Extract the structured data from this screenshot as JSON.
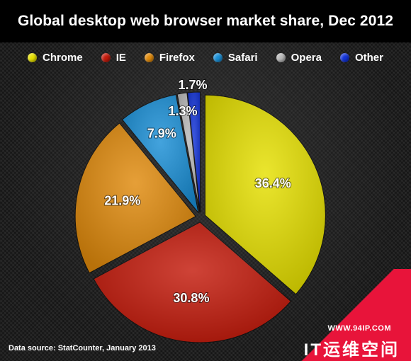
{
  "chart_data": {
    "type": "pie",
    "title": "Global desktop web browser market share, Dec 2012",
    "legend_position": "top",
    "slices": [
      {
        "name": "Chrome",
        "value": 36.4,
        "label": "36.4%",
        "color": "#e6e000"
      },
      {
        "name": "IE",
        "value": 30.8,
        "label": "30.8%",
        "color": "#c41a0b"
      },
      {
        "name": "Firefox",
        "value": 21.9,
        "label": "21.9%",
        "color": "#e08a0c"
      },
      {
        "name": "Safari",
        "value": 7.9,
        "label": "7.9%",
        "color": "#1a8fd6"
      },
      {
        "name": "Opera",
        "value": 1.3,
        "label": "1.3%",
        "color": "#b9b9b9"
      },
      {
        "name": "Other",
        "value": 1.7,
        "label": "1.7%",
        "color": "#1233d8"
      }
    ]
  },
  "source": "Data source: StatCounter, January 2013",
  "watermark": {
    "url": "WWW.94IP.COM",
    "text": "IT运维空间"
  }
}
